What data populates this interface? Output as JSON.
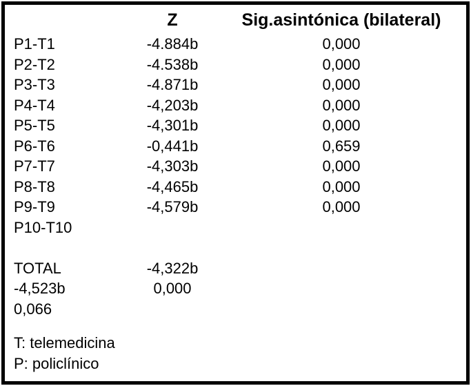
{
  "table": {
    "headers": {
      "pair": "",
      "z": "Z",
      "sig": "Sig.asintónica (bilateral)"
    },
    "rows": [
      {
        "pair": "P1-T1",
        "z": "-4.884b",
        "sig": "0,000"
      },
      {
        "pair": "P2-T2",
        "z": "-4.538b",
        "sig": "0,000"
      },
      {
        "pair": "P3-T3",
        "z": "-4.871b",
        "sig": "0,000"
      },
      {
        "pair": "P4-T4",
        "z": "-4,203b",
        "sig": "0,000"
      },
      {
        "pair": "P5-T5",
        "z": "-4,301b",
        "sig": "0,000"
      },
      {
        "pair": "P6-T6",
        "z": "-0,441b",
        "sig": "0,659"
      },
      {
        "pair": "P7-T7",
        "z": "-4,303b",
        "sig": "0,000"
      },
      {
        "pair": "P8-T8",
        "z": "-4,465b",
        "sig": "0,000"
      },
      {
        "pair": "P9-T9",
        "z": "-4,579b",
        "sig": "0,000"
      },
      {
        "pair": "P10-T10",
        "z": "",
        "sig": ""
      }
    ],
    "total_row": {
      "pair": "TOTAL",
      "z": "-4,322b",
      "sig": ""
    },
    "overflow_rows": [
      {
        "pair": "-4,523b",
        "z": "0,000",
        "sig": ""
      },
      {
        "pair": "0,066",
        "z": "",
        "sig": ""
      }
    ],
    "footnotes": [
      "T: telemedicina",
      "P: policlínico"
    ]
  },
  "colors": {
    "text": "#000000",
    "background": "#ffffff",
    "border": "#000000"
  }
}
